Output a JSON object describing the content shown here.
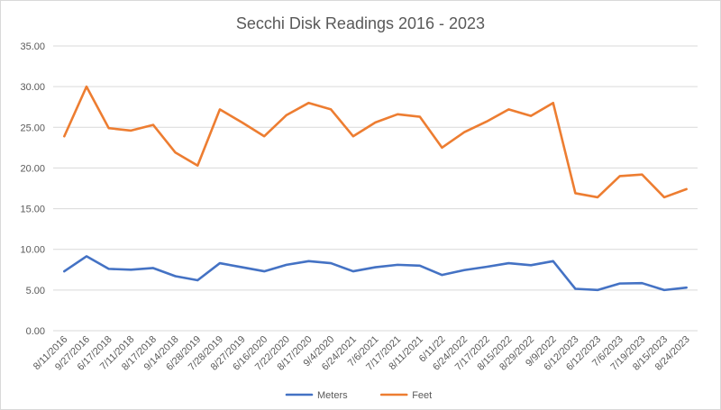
{
  "chart_data": {
    "type": "line",
    "title": "Secchi Disk Readings 2016 - 2023",
    "xlabel": "",
    "ylabel": "",
    "ylim": [
      0,
      35
    ],
    "yticks": [
      "0.00",
      "5.00",
      "10.00",
      "15.00",
      "20.00",
      "25.00",
      "30.00",
      "35.00"
    ],
    "grid": true,
    "legend_position": "bottom",
    "categories": [
      "8/11/2016",
      "9/27/2016",
      "6/17/2018",
      "7/11/2018",
      "8/17/2018",
      "9/14/2018",
      "6/28/2019",
      "7/28/2019",
      "8/27/2019",
      "6/16/2020",
      "7/22/2020",
      "8/17/2020",
      "9/4/2020",
      "6/24/2021",
      "7/6/2021",
      "7/17/2021",
      "8/11/2021",
      "6/11/22",
      "6/24/2022",
      "7/17/2022",
      "8/15/2022",
      "8/29/2022",
      "9/9/2022",
      "6/12/2023",
      "6/12/2023",
      "7/6/2023",
      "7/19/2023",
      "8/15/2023",
      "8/24/2023"
    ],
    "series": [
      {
        "name": "Meters",
        "color": "#4472c4",
        "values": [
          7.3,
          9.15,
          7.6,
          7.5,
          7.7,
          6.7,
          6.2,
          8.3,
          7.8,
          7.3,
          8.1,
          8.55,
          8.3,
          7.3,
          7.8,
          8.1,
          8.0,
          6.85,
          7.45,
          7.85,
          8.3,
          8.05,
          8.55,
          5.15,
          5.0,
          5.8,
          5.85,
          5.0,
          5.3
        ]
      },
      {
        "name": "Feet",
        "color": "#ed7d31",
        "values": [
          23.9,
          30.0,
          24.9,
          24.6,
          25.3,
          21.9,
          20.3,
          27.2,
          25.6,
          23.9,
          26.5,
          28.0,
          27.2,
          23.9,
          25.6,
          26.6,
          26.3,
          22.5,
          24.4,
          25.7,
          27.2,
          26.4,
          28.0,
          16.9,
          16.4,
          19.0,
          19.2,
          16.4,
          17.4
        ]
      }
    ]
  }
}
